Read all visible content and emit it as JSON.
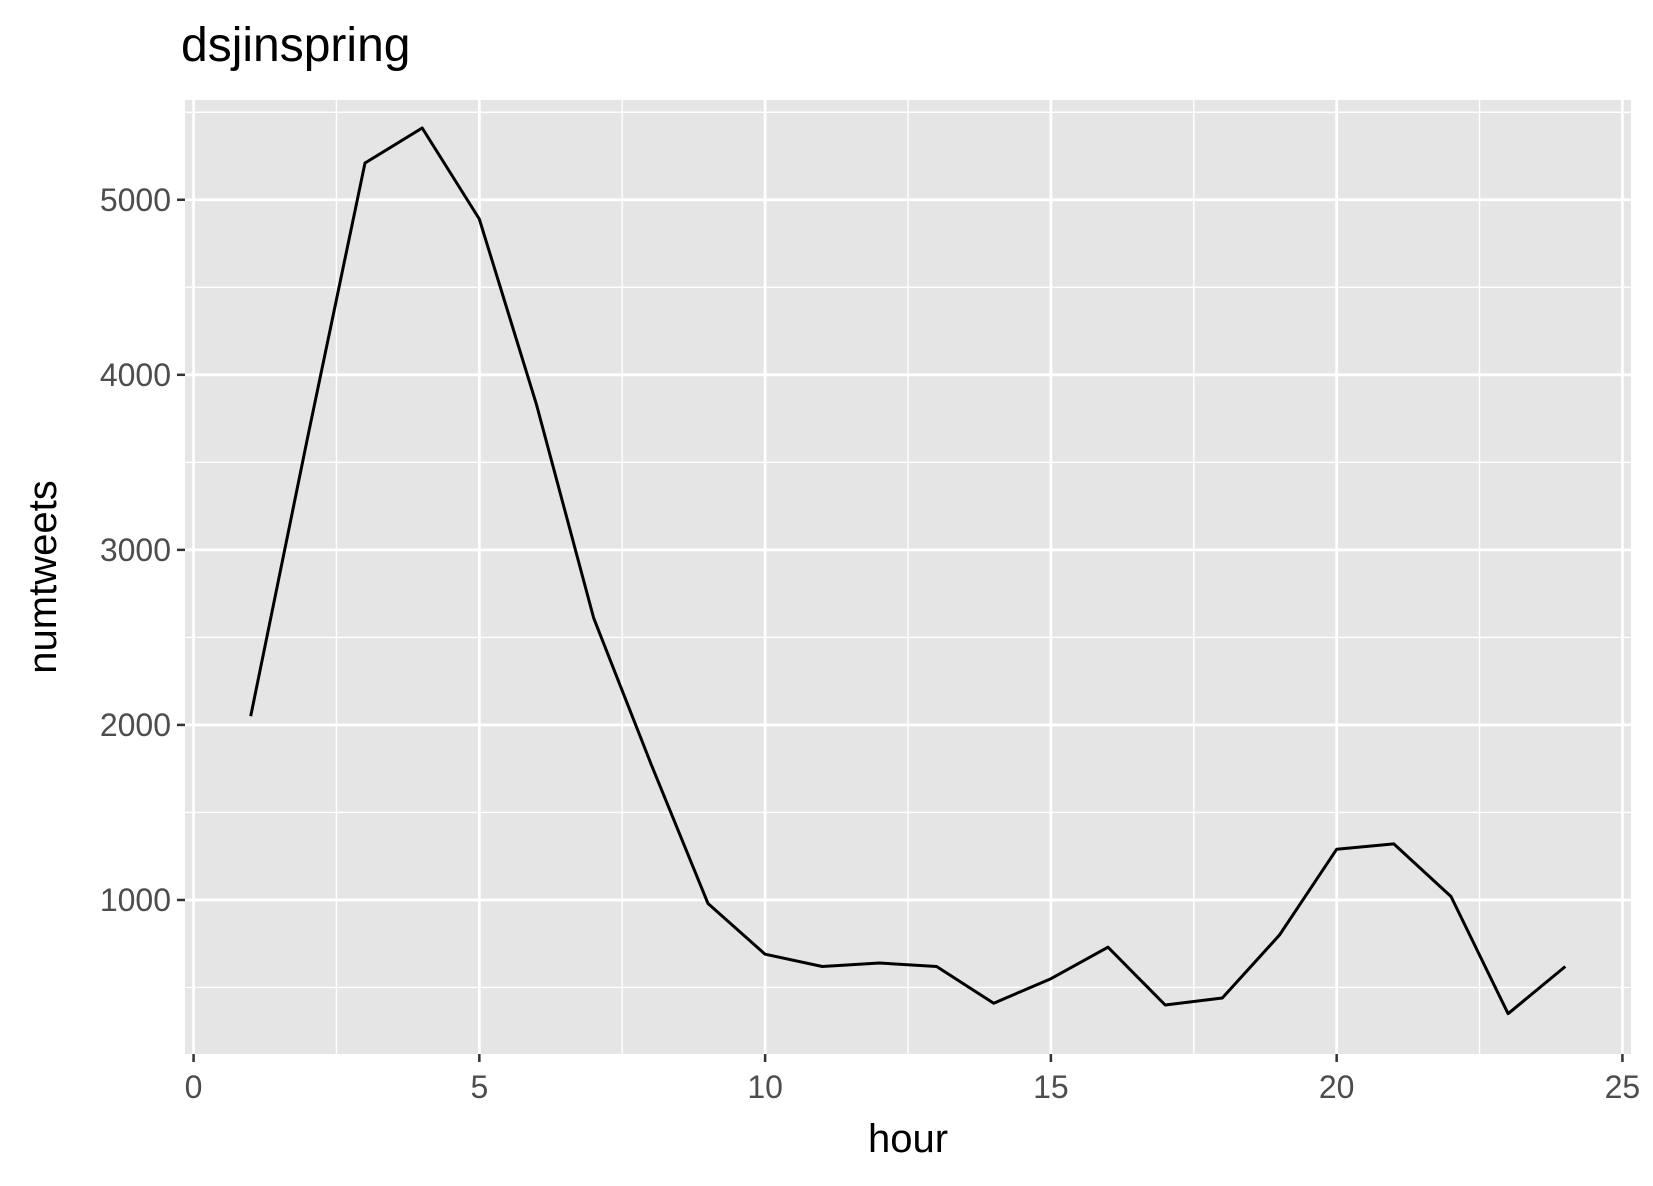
{
  "chart_data": {
    "type": "line",
    "title": "dsjinspring",
    "xlabel": "hour",
    "ylabel": "numtweets",
    "xlim": [
      -0.15,
      25.15
    ],
    "ylim": [
      120,
      5570
    ],
    "x_ticks": [
      0,
      5,
      10,
      15,
      20,
      25
    ],
    "y_ticks": [
      1000,
      2000,
      3000,
      4000,
      5000
    ],
    "x_tick_labels": [
      "0",
      "5",
      "10",
      "15",
      "20",
      "25"
    ],
    "y_tick_labels": [
      "1000",
      "2000",
      "3000",
      "4000",
      "5000"
    ],
    "x_minor_ticks": [
      2.5,
      7.5,
      12.5,
      17.5,
      22.5
    ],
    "y_minor_ticks": [
      500,
      1500,
      2500,
      3500,
      4500,
      5500
    ],
    "grid": true,
    "panel_background": "#e5e5e5",
    "grid_color": "#ffffff",
    "line_color": "#000000",
    "series": [
      {
        "x": [
          1,
          2,
          3,
          4,
          5,
          6,
          7,
          8,
          9,
          10,
          11,
          12,
          13,
          14,
          15,
          16,
          17,
          18,
          19,
          20,
          21,
          22,
          23,
          24
        ],
        "values": [
          2050,
          3650,
          5210,
          5410,
          4890,
          3830,
          2610,
          1780,
          980,
          690,
          620,
          640,
          620,
          410,
          550,
          730,
          400,
          440,
          800,
          1290,
          1320,
          1020,
          350,
          620
        ]
      }
    ]
  }
}
